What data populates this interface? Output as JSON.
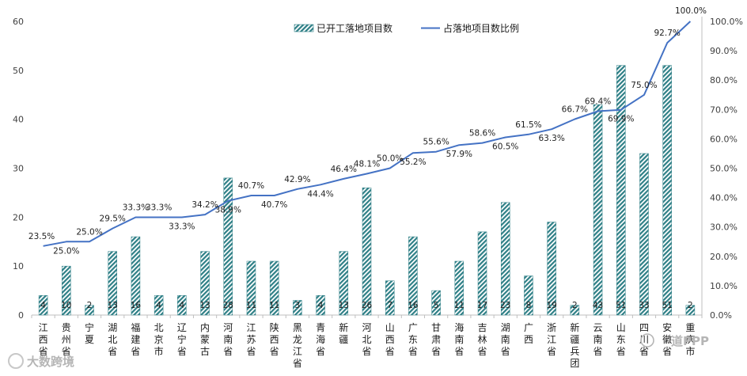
{
  "chart_data": {
    "type": "bar+line",
    "categories": [
      "江西省",
      "贵州省",
      "宁夏",
      "湖北省",
      "福建省",
      "北京市",
      "辽宁省",
      "内蒙古",
      "河南省",
      "江苏省",
      "陕西省",
      "黑龙江省",
      "青海省",
      "新疆",
      "河北省",
      "山西省",
      "广东省",
      "甘肃省",
      "海南省",
      "吉林省",
      "湖南省",
      "广西",
      "浙江省",
      "新疆兵团",
      "云南省",
      "山东省",
      "四川省",
      "安徽省",
      "重庆市"
    ],
    "series": [
      {
        "name": "已开工落地项目数",
        "type": "bar",
        "axis": "left",
        "values": [
          4,
          10,
          2,
          13,
          16,
          4,
          4,
          13,
          28,
          11,
          11,
          3,
          4,
          13,
          26,
          7,
          16,
          5,
          11,
          17,
          23,
          8,
          19,
          2,
          43,
          51,
          33,
          51,
          2
        ]
      },
      {
        "name": "占落地项目数比例",
        "type": "line",
        "axis": "right",
        "values": [
          23.5,
          25.0,
          25.0,
          29.5,
          33.3,
          33.3,
          33.3,
          34.2,
          38.9,
          40.7,
          40.7,
          42.9,
          44.4,
          46.4,
          48.1,
          50.0,
          55.2,
          55.6,
          57.9,
          58.6,
          60.5,
          61.5,
          63.3,
          66.7,
          69.4,
          69.9,
          75.0,
          92.7,
          100.0
        ],
        "labels": [
          "23.5%",
          "25.0%",
          "25.0%",
          "29.5%",
          "33.3%",
          "33.3%",
          "33.3%",
          "34.2%",
          "38.9%",
          "40.7%",
          "40.7%",
          "42.9%",
          "44.4%",
          "46.4%",
          "48.1%",
          "50.0%",
          "55.2%",
          "55.6%",
          "57.9%",
          "58.6%",
          "60.5%",
          "61.5%",
          "63.3%",
          "66.7%",
          "69.4%",
          "69.9%",
          "75.0%",
          "92.7%",
          "100.0%"
        ]
      }
    ],
    "left_axis": {
      "range": [
        0,
        60
      ],
      "ticks": [
        "0",
        "10",
        "20",
        "30",
        "40",
        "50",
        "60"
      ]
    },
    "right_axis": {
      "range": [
        0,
        100
      ],
      "ticks": [
        "0.0%",
        "10.0%",
        "20.0%",
        "30.0%",
        "40.0%",
        "50.0%",
        "60.0%",
        "70.0%",
        "80.0%",
        "90.0%",
        "100.0%"
      ]
    },
    "legend": {
      "position": "top-center"
    },
    "colors": {
      "bar": "#2e7f86",
      "line": "#4472c4",
      "axis": "#bfbfbf"
    }
  },
  "watermarks": {
    "left": "大数跨境",
    "right": "道PPP"
  }
}
